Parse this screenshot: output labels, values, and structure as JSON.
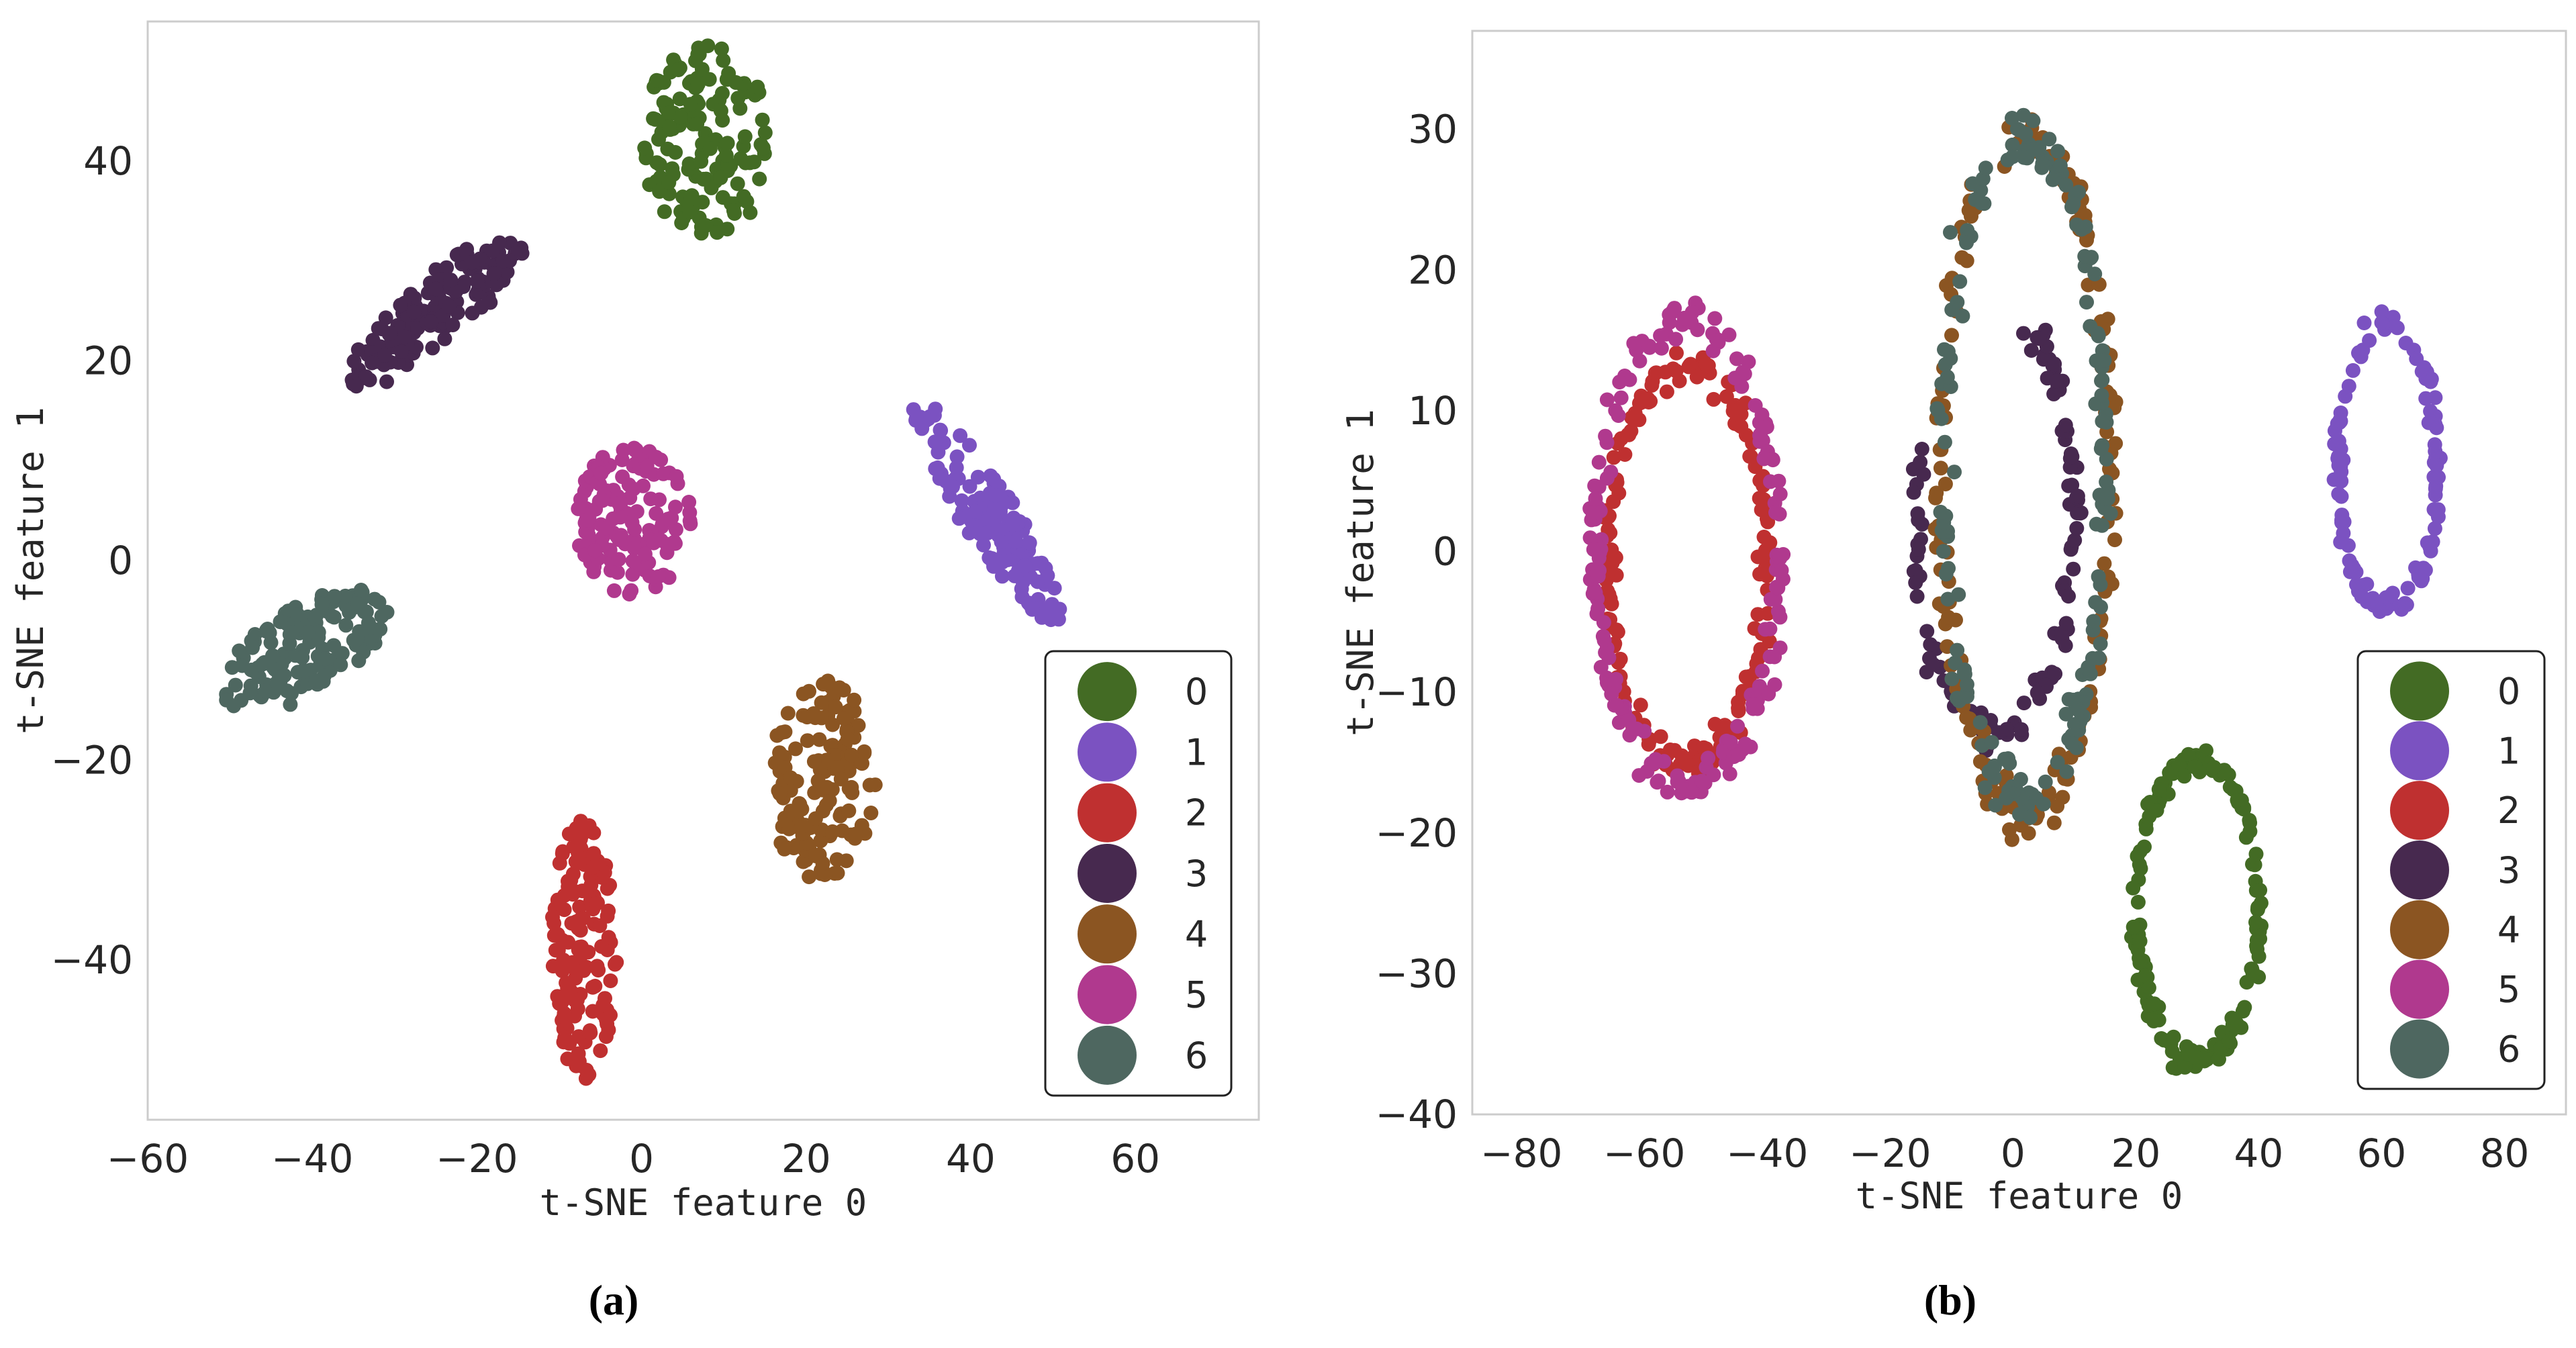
{
  "chart_data": [
    {
      "id": "a",
      "type": "scatter",
      "caption": "(a)",
      "xlabel": "t-SNE feature 0",
      "ylabel": "t-SNE feature 1",
      "xlim": [
        -60,
        75
      ],
      "ylim": [
        -56,
        54
      ],
      "xticks": [
        -60,
        -40,
        -20,
        0,
        20,
        40,
        60
      ],
      "yticks": [
        -40,
        -20,
        0,
        20,
        40
      ],
      "xtick_labels": [
        "−60",
        "−40",
        "−20",
        "0",
        "20",
        "40",
        "60"
      ],
      "ytick_labels": [
        "−40",
        "−20",
        "0",
        "20",
        "40"
      ],
      "grid": false,
      "legend_position": "lower-right",
      "legend": [
        "0",
        "1",
        "2",
        "3",
        "4",
        "5",
        "6"
      ],
      "clusters": [
        {
          "label": "0",
          "color": "#436b24",
          "shape": "blob",
          "cx": 8,
          "cy": 42,
          "rx": 8,
          "ry": 10,
          "angle": 0,
          "n": 150
        },
        {
          "label": "1",
          "color": "#7b52c1",
          "shape": "blob",
          "cx": 42,
          "cy": 5,
          "rx": 3.2,
          "ry": 14,
          "angle": 38,
          "n": 140
        },
        {
          "label": "2",
          "color": "#bf3030",
          "shape": "blob",
          "cx": -7,
          "cy": -39,
          "rx": 4,
          "ry": 13,
          "angle": 0,
          "n": 140
        },
        {
          "label": "3",
          "color": "#47294f",
          "shape": "blob",
          "cx": -25,
          "cy": 25,
          "rx": 13,
          "ry": 3.5,
          "angle": 35,
          "n": 140
        },
        {
          "label": "4",
          "color": "#8b5522",
          "shape": "blob",
          "cx": 22,
          "cy": -22,
          "rx": 6.5,
          "ry": 10,
          "angle": 0,
          "n": 140
        },
        {
          "label": "5",
          "color": "#b0398e",
          "shape": "blob",
          "cx": -1,
          "cy": 4,
          "rx": 7,
          "ry": 7.5,
          "angle": 0,
          "n": 140
        },
        {
          "label": "6",
          "color": "#4e6760",
          "shape": "blob",
          "cx": -41,
          "cy": -9,
          "rx": 11,
          "ry": 4.5,
          "angle": 25,
          "n": 150
        }
      ]
    },
    {
      "id": "b",
      "type": "scatter",
      "caption": "(b)",
      "xlabel": "t-SNE feature 0",
      "ylabel": "t-SNE feature 1",
      "xlim": [
        -88,
        90
      ],
      "ylim": [
        -40,
        37
      ],
      "xticks": [
        -80,
        -60,
        -40,
        -20,
        0,
        20,
        40,
        60,
        80
      ],
      "yticks": [
        -40,
        -30,
        -20,
        -10,
        0,
        10,
        20,
        30
      ],
      "xtick_labels": [
        "−80",
        "−60",
        "−40",
        "−20",
        "0",
        "20",
        "40",
        "60",
        "80"
      ],
      "ytick_labels": [
        "−40",
        "−30",
        "−20",
        "−10",
        "0",
        "10",
        "20",
        "30"
      ],
      "grid": false,
      "legend_position": "lower-right",
      "legend": [
        "0",
        "1",
        "2",
        "3",
        "4",
        "5",
        "6"
      ],
      "clusters": [
        {
          "label": "0",
          "color": "#436b24",
          "shape": "ring",
          "cx": 30,
          "cy": -25.5,
          "rx": 10,
          "ry": 10.5,
          "angle": 0,
          "n": 160
        },
        {
          "label": "1",
          "color": "#7b52c1",
          "shape": "ring",
          "cx": 61,
          "cy": 6,
          "rx": 8,
          "ry": 10,
          "angle": 0,
          "n": 120
        },
        {
          "label": "2",
          "color": "#bf3030",
          "shape": "ring",
          "cx": -53,
          "cy": -1,
          "rx": 13,
          "ry": 14,
          "angle": 0,
          "n": 180
        },
        {
          "label": "3",
          "color": "#47294f",
          "shape": "arc",
          "cx": -3,
          "cy": 2.5,
          "rx": 13,
          "ry": 15.5,
          "a0": -200,
          "a1": 70,
          "n": 110
        },
        {
          "label": "4",
          "color": "#8b5522",
          "shape": "arc",
          "cx": 2,
          "cy": 5.5,
          "rx": 14,
          "ry": 24,
          "a0": -235,
          "a1": 105,
          "n": 190
        },
        {
          "label": "5",
          "color": "#b0398e",
          "shape": "ring",
          "cx": -53,
          "cy": 0,
          "rx": 15,
          "ry": 16.5,
          "angle": 0,
          "n": 200
        },
        {
          "label": "6",
          "color": "#4e6760",
          "shape": "arc",
          "cx": 2,
          "cy": 6,
          "rx": 13,
          "ry": 23.5,
          "a0": -245,
          "a1": 105,
          "n": 180
        }
      ]
    }
  ]
}
